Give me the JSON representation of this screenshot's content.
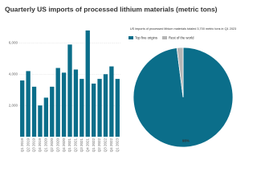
{
  "title": "Quarterly US imports of processed lithium materials (metric tons)",
  "chart_data": [
    {
      "type": "bar",
      "categories": [
        "Q1 2019",
        "Q2 2019",
        "Q3 2019",
        "Q4 2019",
        "Q1 2020",
        "Q2 2020",
        "Q3 2020",
        "Q4 2020",
        "Q1 2021",
        "Q2 2021",
        "Q3 2021",
        "Q4 2021",
        "Q1 2022",
        "Q2 2022",
        "Q3 2022",
        "Q4 2022",
        "Q1 2023"
      ],
      "values": [
        3600,
        4200,
        3200,
        2000,
        2500,
        3200,
        4400,
        4100,
        5900,
        4300,
        3700,
        6800,
        3400,
        3700,
        4000,
        4500,
        3700
      ],
      "color": "#0b6e8a",
      "ylim": [
        0,
        7000
      ],
      "yticks": [
        {
          "value": 2000,
          "label": "2,000"
        },
        {
          "value": 4000,
          "label": "4,000"
        },
        {
          "value": 6000,
          "label": "6,000"
        }
      ],
      "grid": true
    },
    {
      "type": "pie",
      "title": "US imports of processed lithium materials totaled 3,700 metric tons in Q1 2023",
      "series": [
        {
          "name": "Top five origins",
          "color": "#0b6e8a"
        },
        {
          "name": "Rest of the world",
          "color": "#b5b5b5"
        }
      ],
      "values": [
        98,
        2
      ],
      "value_labels": [
        "98%",
        null
      ]
    }
  ]
}
